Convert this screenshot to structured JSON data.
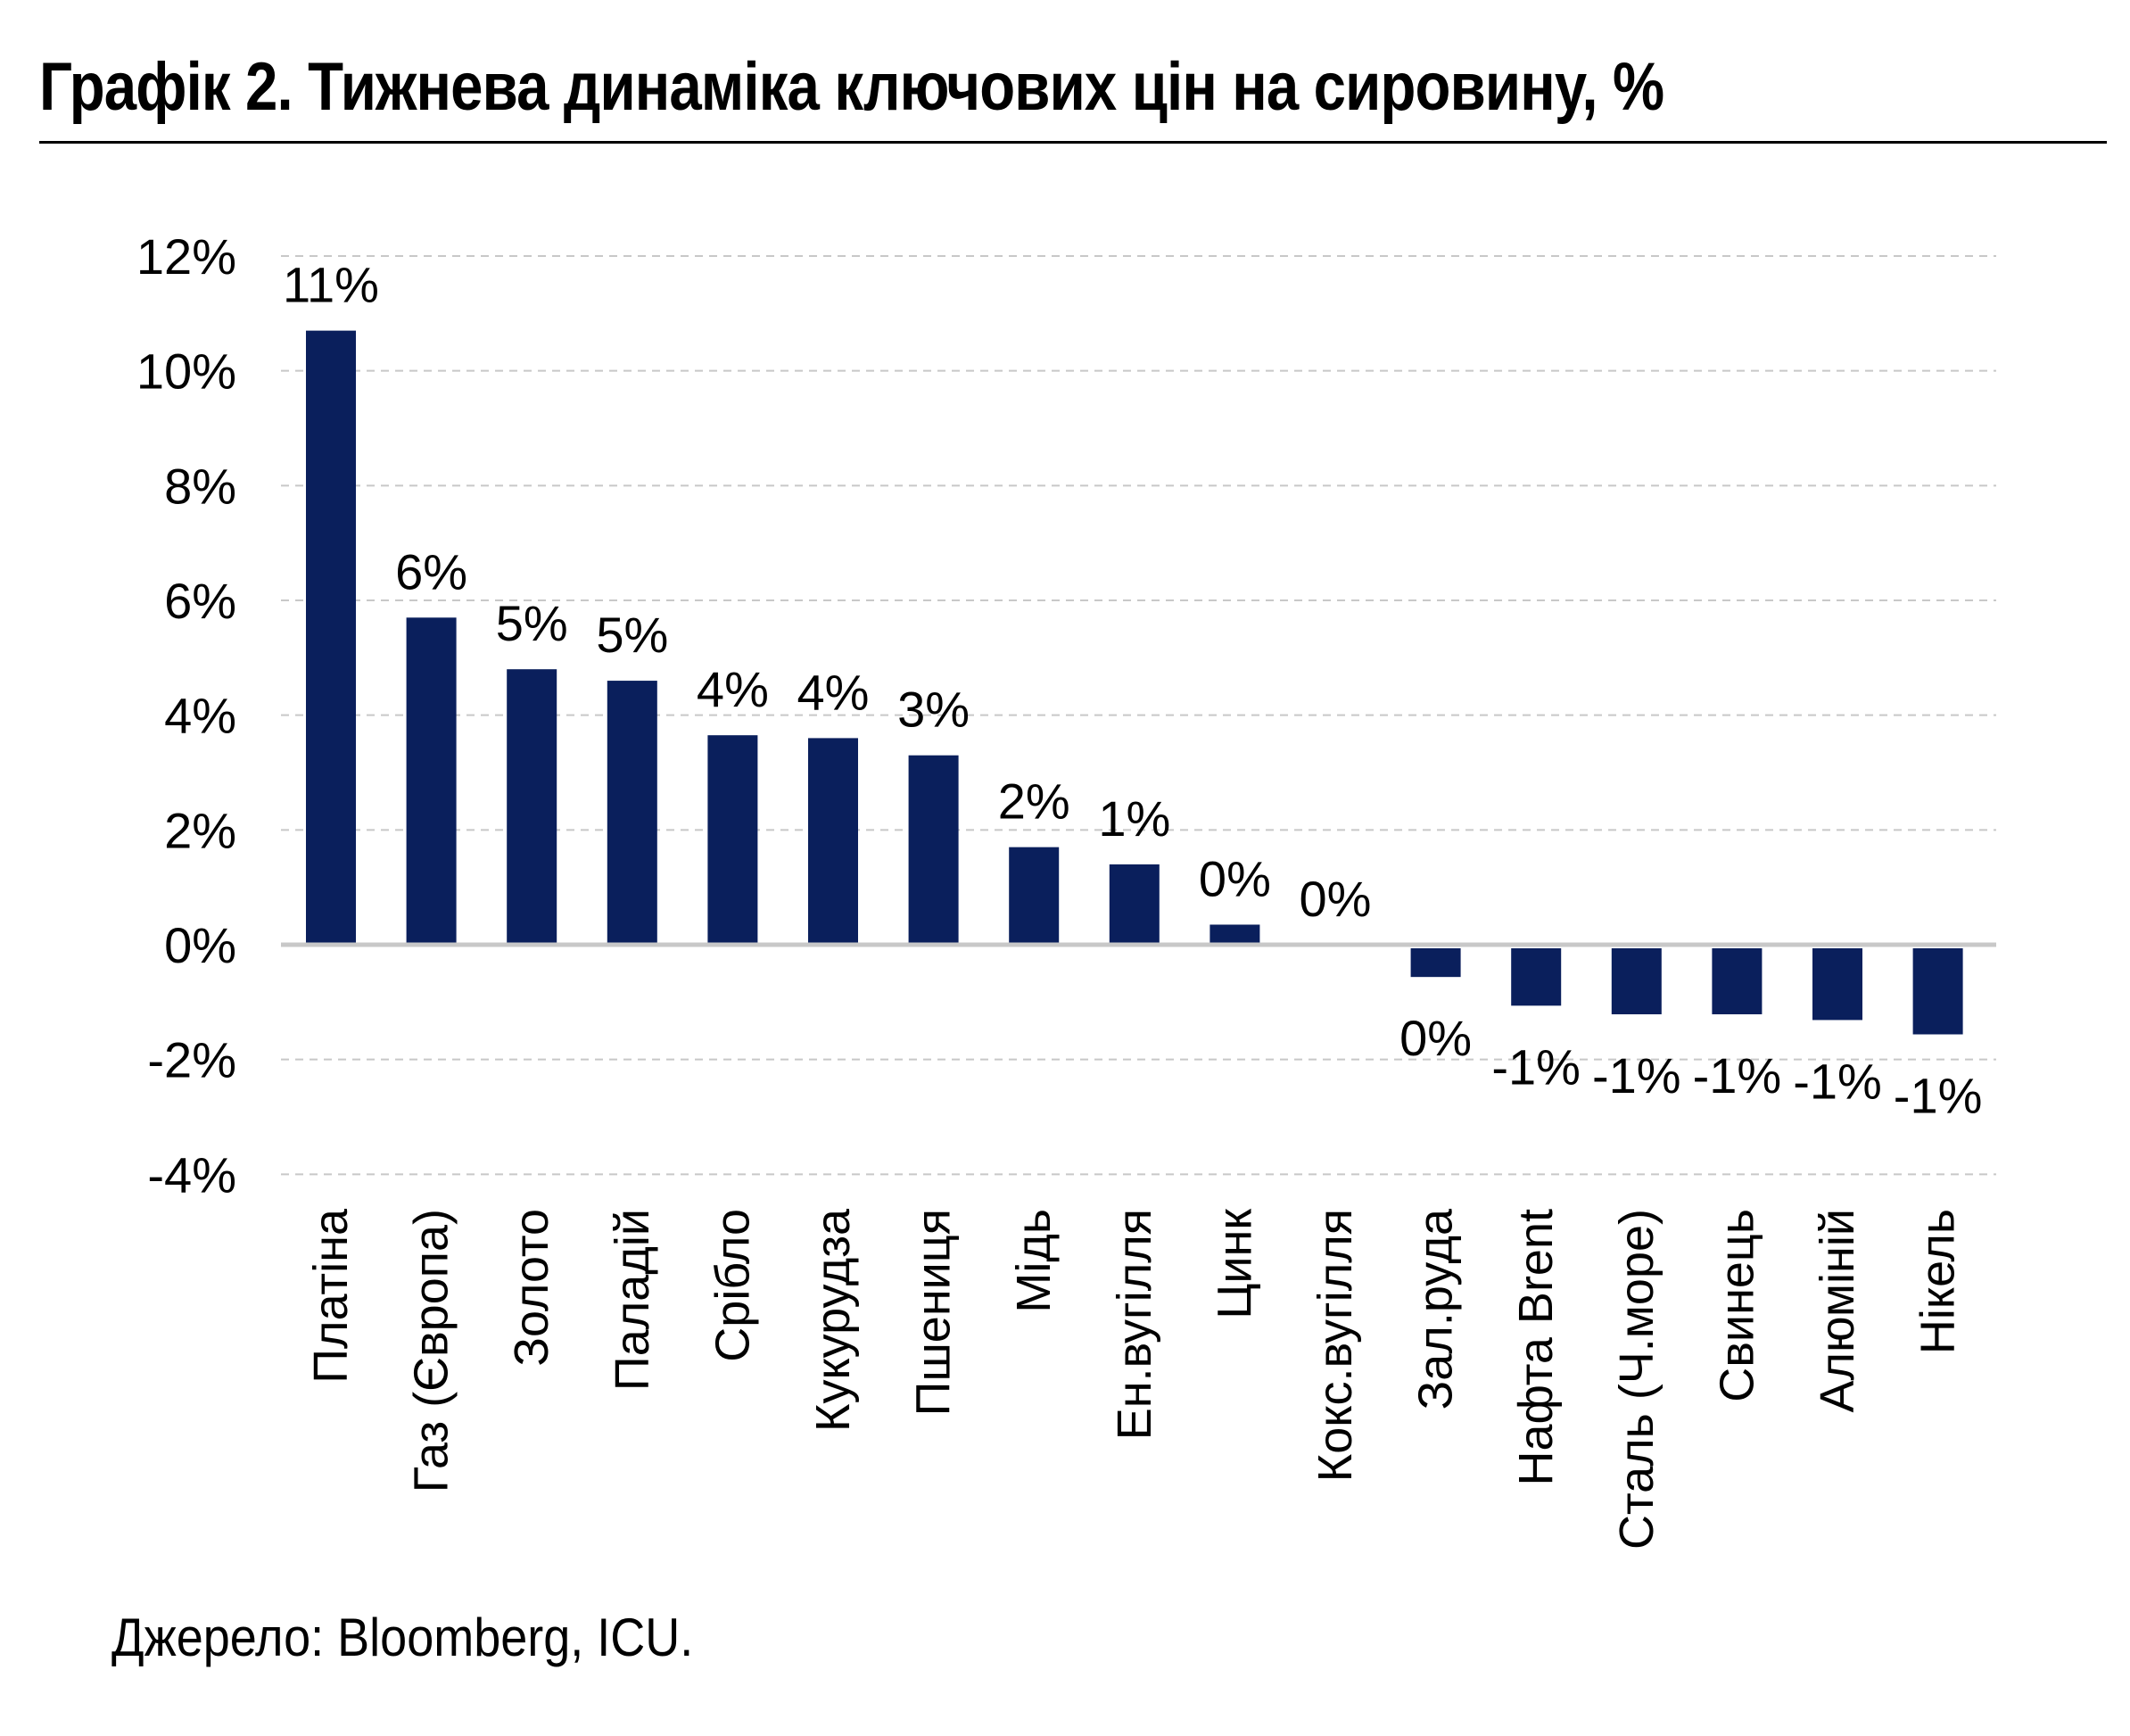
{
  "title": "Графік 2. Тижнева динаміка ключових цін на сировину, %",
  "source": "Джерело: Bloomberg, ICU.",
  "colors": {
    "bar": "#0a1f5c",
    "grid": "#c8c8c8",
    "zero": "#c8c8c8"
  },
  "chart_data": {
    "type": "bar",
    "title": "Графік 2. Тижнева динаміка ключових цін на сировину, %",
    "xlabel": "",
    "ylabel": "",
    "ylim": [
      -4,
      12
    ],
    "yticks": [
      12,
      10,
      8,
      6,
      4,
      2,
      0,
      -2,
      -4
    ],
    "ytick_labels": [
      "12%",
      "10%",
      "8%",
      "6%",
      "4%",
      "2%",
      "0%",
      "-2%",
      "-4%"
    ],
    "grid": true,
    "grid_style": "dashed",
    "legend": "none",
    "categories": [
      "Платіна",
      "Газ (Європа)",
      "Золото",
      "Паладій",
      "Срібло",
      "Кукурудза",
      "Пшениця",
      "Мідь",
      "Ен.вугілля",
      "Цинк",
      "Кокс.вугілля",
      "Зал.руда",
      "Нафта Brent",
      "Сталь (Ч.море)",
      "Свинець",
      "Алюміній",
      "Нікель"
    ],
    "values": [
      10.7,
      5.7,
      4.8,
      4.6,
      3.65,
      3.6,
      3.3,
      1.7,
      1.4,
      0.35,
      0.0,
      -0.5,
      -1.0,
      -1.15,
      -1.15,
      -1.25,
      -1.5
    ],
    "data_labels": [
      "11%",
      "6%",
      "5%",
      "5%",
      "4%",
      "4%",
      "3%",
      "2%",
      "1%",
      "0%",
      "0%",
      "0%",
      "-1%",
      "-1%",
      "-1%",
      "-1%",
      "-1%"
    ]
  }
}
